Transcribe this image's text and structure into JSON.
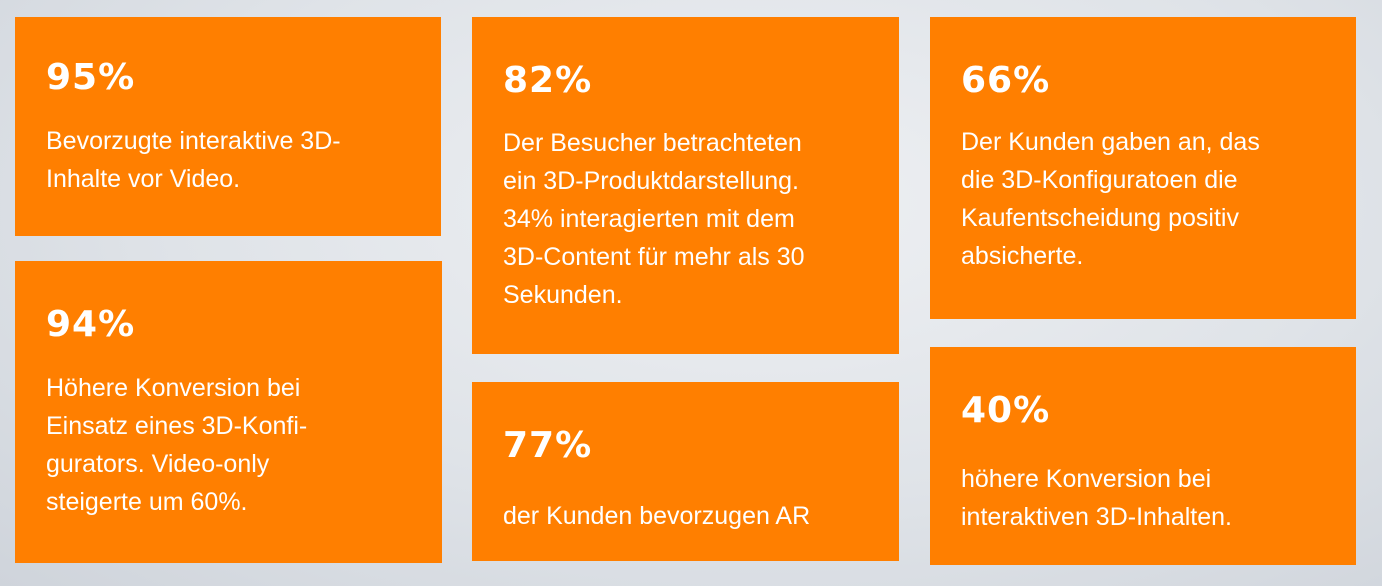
{
  "colors": {
    "card_background": "#ff7f00",
    "text": "#ffffff"
  },
  "cards": [
    {
      "percent": "95%",
      "text": "Bevorzugte interaktive 3D-\nInhalte vor Video."
    },
    {
      "percent": "94%",
      "text": "Höhere Konversion bei\nEinsatz eines 3D-Konfi-\ngurators. Video-only\nsteigerte um 60%."
    },
    {
      "percent": "82%",
      "text": "Der Besucher betrachteten\nein 3D-Produktdarstellung.\n34% interagierten mit dem\n3D-Content für mehr als 30\nSekunden."
    },
    {
      "percent": "77%",
      "text": "der Kunden bevorzugen AR"
    },
    {
      "percent": "66%",
      "text": "Der Kunden gaben an, das\ndie 3D-Konfiguratoen die\nKaufentscheidung  positiv\nabsicherte."
    },
    {
      "percent": "40%",
      "text": "höhere Konversion bei\ninteraktiven 3D-Inhalten."
    }
  ]
}
